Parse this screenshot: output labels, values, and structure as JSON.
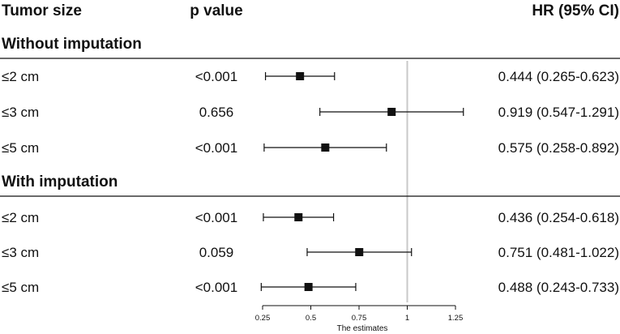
{
  "chart_data": {
    "type": "forest",
    "columns": {
      "label": "Tumor size",
      "pvalue": "p value",
      "ci": "HR (95% CI)"
    },
    "groups": [
      {
        "title": "Without imputation",
        "rows": [
          {
            "label": "≤2 cm",
            "p": "<0.001",
            "hr": 0.444,
            "lo": 0.265,
            "hi": 0.623,
            "ci_text": "0.444 (0.265-0.623)"
          },
          {
            "label": "≤3 cm",
            "p": "0.656",
            "hr": 0.919,
            "lo": 0.547,
            "hi": 1.291,
            "ci_text": "0.919 (0.547-1.291)"
          },
          {
            "label": "≤5 cm",
            "p": "<0.001",
            "hr": 0.575,
            "lo": 0.258,
            "hi": 0.892,
            "ci_text": "0.575 (0.258-0.892)"
          }
        ]
      },
      {
        "title": "With imputation",
        "rows": [
          {
            "label": "≤2 cm",
            "p": "<0.001",
            "hr": 0.436,
            "lo": 0.254,
            "hi": 0.618,
            "ci_text": "0.436 (0.254-0.618)"
          },
          {
            "label": "≤3 cm",
            "p": "0.059",
            "hr": 0.751,
            "lo": 0.481,
            "hi": 1.022,
            "ci_text": "0.751 (0.481-1.022)"
          },
          {
            "label": "≤5 cm",
            "p": "<0.001",
            "hr": 0.488,
            "lo": 0.243,
            "hi": 0.733,
            "ci_text": "0.488 (0.243-0.733)"
          }
        ]
      }
    ],
    "xaxis": {
      "label": "The estimates",
      "ticks": [
        0.25,
        0.5,
        0.75,
        1,
        1.25
      ],
      "tick_labels": [
        "0.25",
        "0.5",
        "0.75",
        "1",
        "1.25"
      ],
      "range": [
        0.25,
        1.25
      ]
    },
    "reference_line": 1,
    "colors": {
      "marker": "#111111",
      "reference": "#c8c8c8",
      "text": "#111111"
    }
  }
}
